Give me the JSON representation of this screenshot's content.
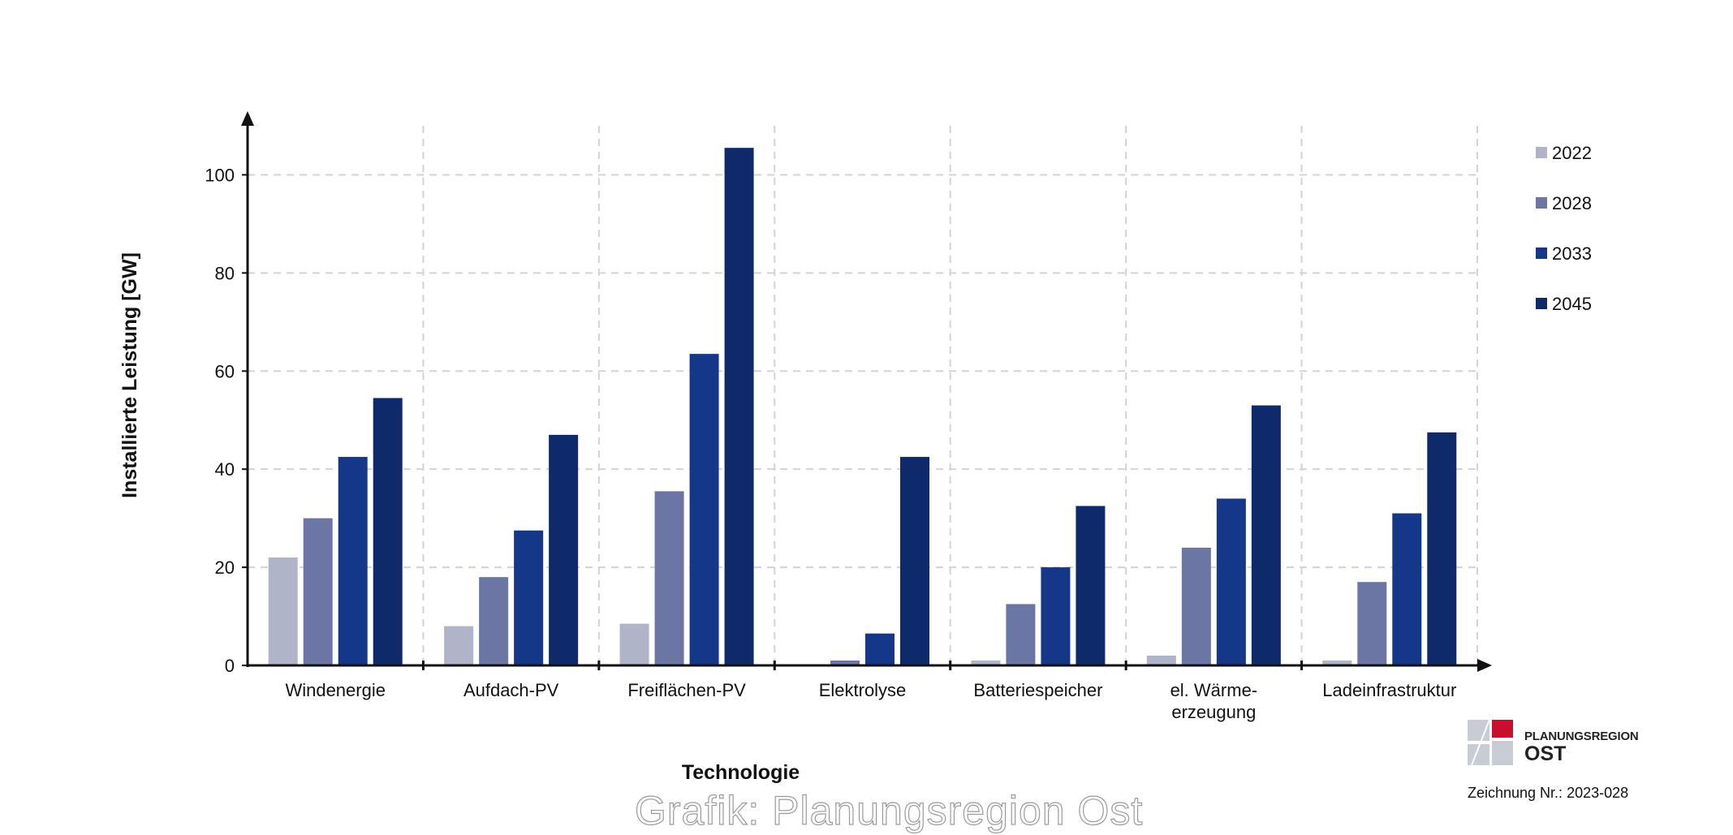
{
  "chart_data": {
    "type": "bar",
    "categories": [
      "Windenergie",
      "Aufdach-PV",
      "Freiflächen-PV",
      "Elektrolyse",
      "Batteriespeicher",
      "el. Wärme-\nerzeugung",
      "Ladeinfrastruktur"
    ],
    "series": [
      {
        "name": "2022",
        "values": [
          22,
          8,
          8.5,
          0,
          1,
          2,
          1
        ],
        "color": "#b0b4c8"
      },
      {
        "name": "2028",
        "values": [
          30,
          18,
          35.5,
          1,
          12.5,
          24,
          17
        ],
        "color": "#6b76a5"
      },
      {
        "name": "2033",
        "values": [
          42.5,
          27.5,
          63.5,
          6.5,
          20,
          34,
          31
        ],
        "color": "#15378a"
      },
      {
        "name": "2045",
        "values": [
          54.5,
          47,
          105.5,
          42.5,
          32.5,
          53,
          47.5
        ],
        "color": "#0f2a6b"
      }
    ],
    "xlabel": "Technologie",
    "ylabel": "Installierte Leistung [GW]",
    "ylim": [
      0,
      110
    ],
    "yticks": [
      0,
      20,
      40,
      60,
      80,
      100
    ],
    "grid": true,
    "legend": "right"
  },
  "logo": {
    "name_top": "PLANUNGSREGION",
    "name_big": "OST",
    "drawing_number": "Zeichnung Nr.: 2023-028"
  },
  "watermark": "Grafik: Planungsregion Ost"
}
